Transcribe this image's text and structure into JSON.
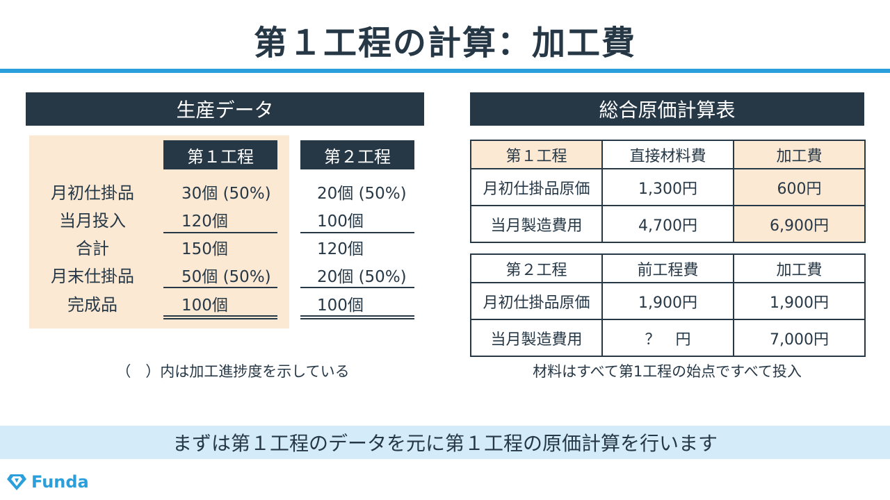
{
  "title": "第１工程の計算：加工費",
  "production": {
    "header": "生産データ",
    "process1_label": "第１工程",
    "process2_label": "第２工程",
    "rows": [
      {
        "label": "月初仕掛品",
        "p1": "30個 (50%)",
        "p2": "20個 (50%)"
      },
      {
        "label": "当月投入",
        "p1": "120個",
        "p2": "100個"
      },
      {
        "label": "合計",
        "p1": "150個",
        "p2": "120個"
      },
      {
        "label": "月末仕掛品",
        "p1": "50個 (50%)",
        "p2": "20個 (50%)"
      },
      {
        "label": "完成品",
        "p1": "100個",
        "p2": "100個"
      }
    ],
    "note": "（　）内は加工進捗度を示している"
  },
  "summary": {
    "header": "総合原価計算表",
    "table1": {
      "headers": [
        "第１工程",
        "直接材料費",
        "加工費"
      ],
      "rows": [
        [
          "月初仕掛品原価",
          "1,300円",
          "600円"
        ],
        [
          "当月製造費用",
          "4,700円",
          "6,900円"
        ]
      ]
    },
    "table2": {
      "headers": [
        "第２工程",
        "前工程費",
        "加工費"
      ],
      "rows": [
        [
          "月初仕掛品原価",
          "1,900円",
          "1,900円"
        ],
        [
          "当月製造費用",
          "？　円",
          "7,000円"
        ]
      ]
    },
    "note": "材料はすべて第1工程の始点ですべて投入"
  },
  "banner": "まずは第１工程のデータを元に第１工程の原価計算を行います",
  "logo": {
    "text": "Funda",
    "icon": "diamond-logo-icon"
  },
  "colors": {
    "navy": "#263746",
    "accent": "#2b9fdc",
    "peach": "#fbe9d4",
    "banner": "#d4ecf9"
  }
}
